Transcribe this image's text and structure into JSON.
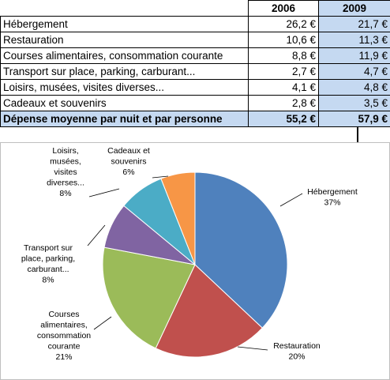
{
  "table": {
    "headers": [
      "",
      "2006",
      "2009"
    ],
    "rows": [
      {
        "label": "Hébergement",
        "v2006": "26,2 €",
        "v2009": "21,7 €"
      },
      {
        "label": "Restauration",
        "v2006": "10,6 €",
        "v2009": "11,3 €"
      },
      {
        "label": "Courses alimentaires, consommation courante",
        "v2006": "8,8 €",
        "v2009": "11,9 €"
      },
      {
        "label": "Transport sur place, parking, carburant...",
        "v2006": "2,7 €",
        "v2009": "4,7 €"
      },
      {
        "label": "Loisirs, musées, visites diverses...",
        "v2006": "4,1 €",
        "v2009": "4,8 €"
      },
      {
        "label": "Cadeaux et souvenirs",
        "v2006": "2,8 €",
        "v2009": "3,5 €"
      }
    ],
    "total": {
      "label": "Dépense moyenne par nuit et par personne",
      "v2006": "55,2 €",
      "v2009": "57,9 €"
    }
  },
  "chart_data": {
    "type": "pie",
    "categories": [
      "Hébergement",
      "Restauration",
      "Courses alimentaires, consommation courante",
      "Transport sur place, parking, carburant...",
      "Loisirs, musées, visites diverses...",
      "Cadeaux et souvenirs"
    ],
    "values": [
      37,
      20,
      21,
      8,
      8,
      6
    ],
    "percent_labels": [
      "37%",
      "20%",
      "21%",
      "8%",
      "8%",
      "6%"
    ],
    "colors": [
      "#4f81bd",
      "#c0504d",
      "#9bbb59",
      "#8064a2",
      "#4bacc6",
      "#f79646"
    ],
    "legend": "none",
    "slice_order": "clockwise from 12 o'clock"
  }
}
